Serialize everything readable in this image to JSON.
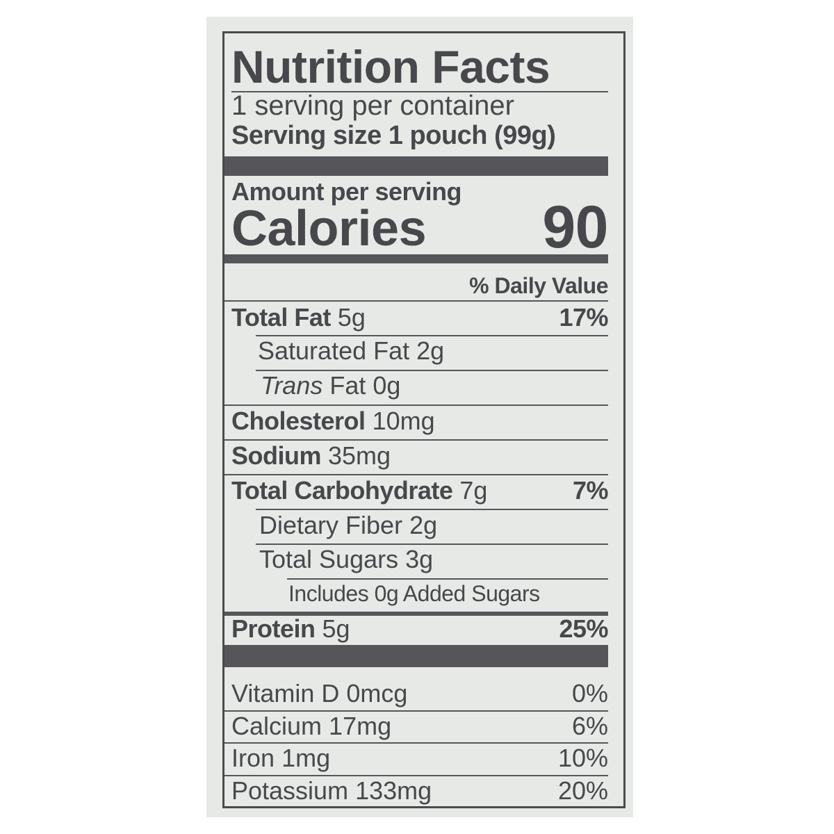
{
  "title": "Nutrition Facts",
  "servings_per_container": "1 serving per container",
  "serving_size": "Serving size 1 pouch (99g)",
  "amount_per_serving": "Amount per serving",
  "calories_label": "Calories",
  "calories_value": "90",
  "daily_value_header": "% Daily Value",
  "nutrients": [
    {
      "name": "Total Fat",
      "amount": "5g",
      "dv": "17%"
    },
    {
      "name": "Saturated Fat",
      "amount": "2g",
      "dv": ""
    },
    {
      "name": "Trans",
      "name_suffix": "Fat",
      "amount": "0g",
      "dv": ""
    },
    {
      "name": "Cholesterol",
      "amount": "10mg",
      "dv": ""
    },
    {
      "name": "Sodium",
      "amount": "35mg",
      "dv": ""
    },
    {
      "name": "Total Carbohydrate",
      "amount": "7g",
      "dv": "7%"
    },
    {
      "name": "Dietary Fiber",
      "amount": "2g",
      "dv": ""
    },
    {
      "name": "Total Sugars",
      "amount": "3g",
      "dv": ""
    },
    {
      "name": "Includes 0g Added Sugars",
      "amount": "",
      "dv": ""
    },
    {
      "name": "Protein",
      "amount": "5g",
      "dv": "25%"
    }
  ],
  "vitamins": [
    {
      "name": "Vitamin D",
      "amount": "0mcg",
      "dv": "0%"
    },
    {
      "name": "Calcium",
      "amount": "17mg",
      "dv": "6%"
    },
    {
      "name": "Iron",
      "amount": "1mg",
      "dv": "10%"
    },
    {
      "name": "Potassium",
      "amount": "133mg",
      "dv": "20%"
    }
  ]
}
